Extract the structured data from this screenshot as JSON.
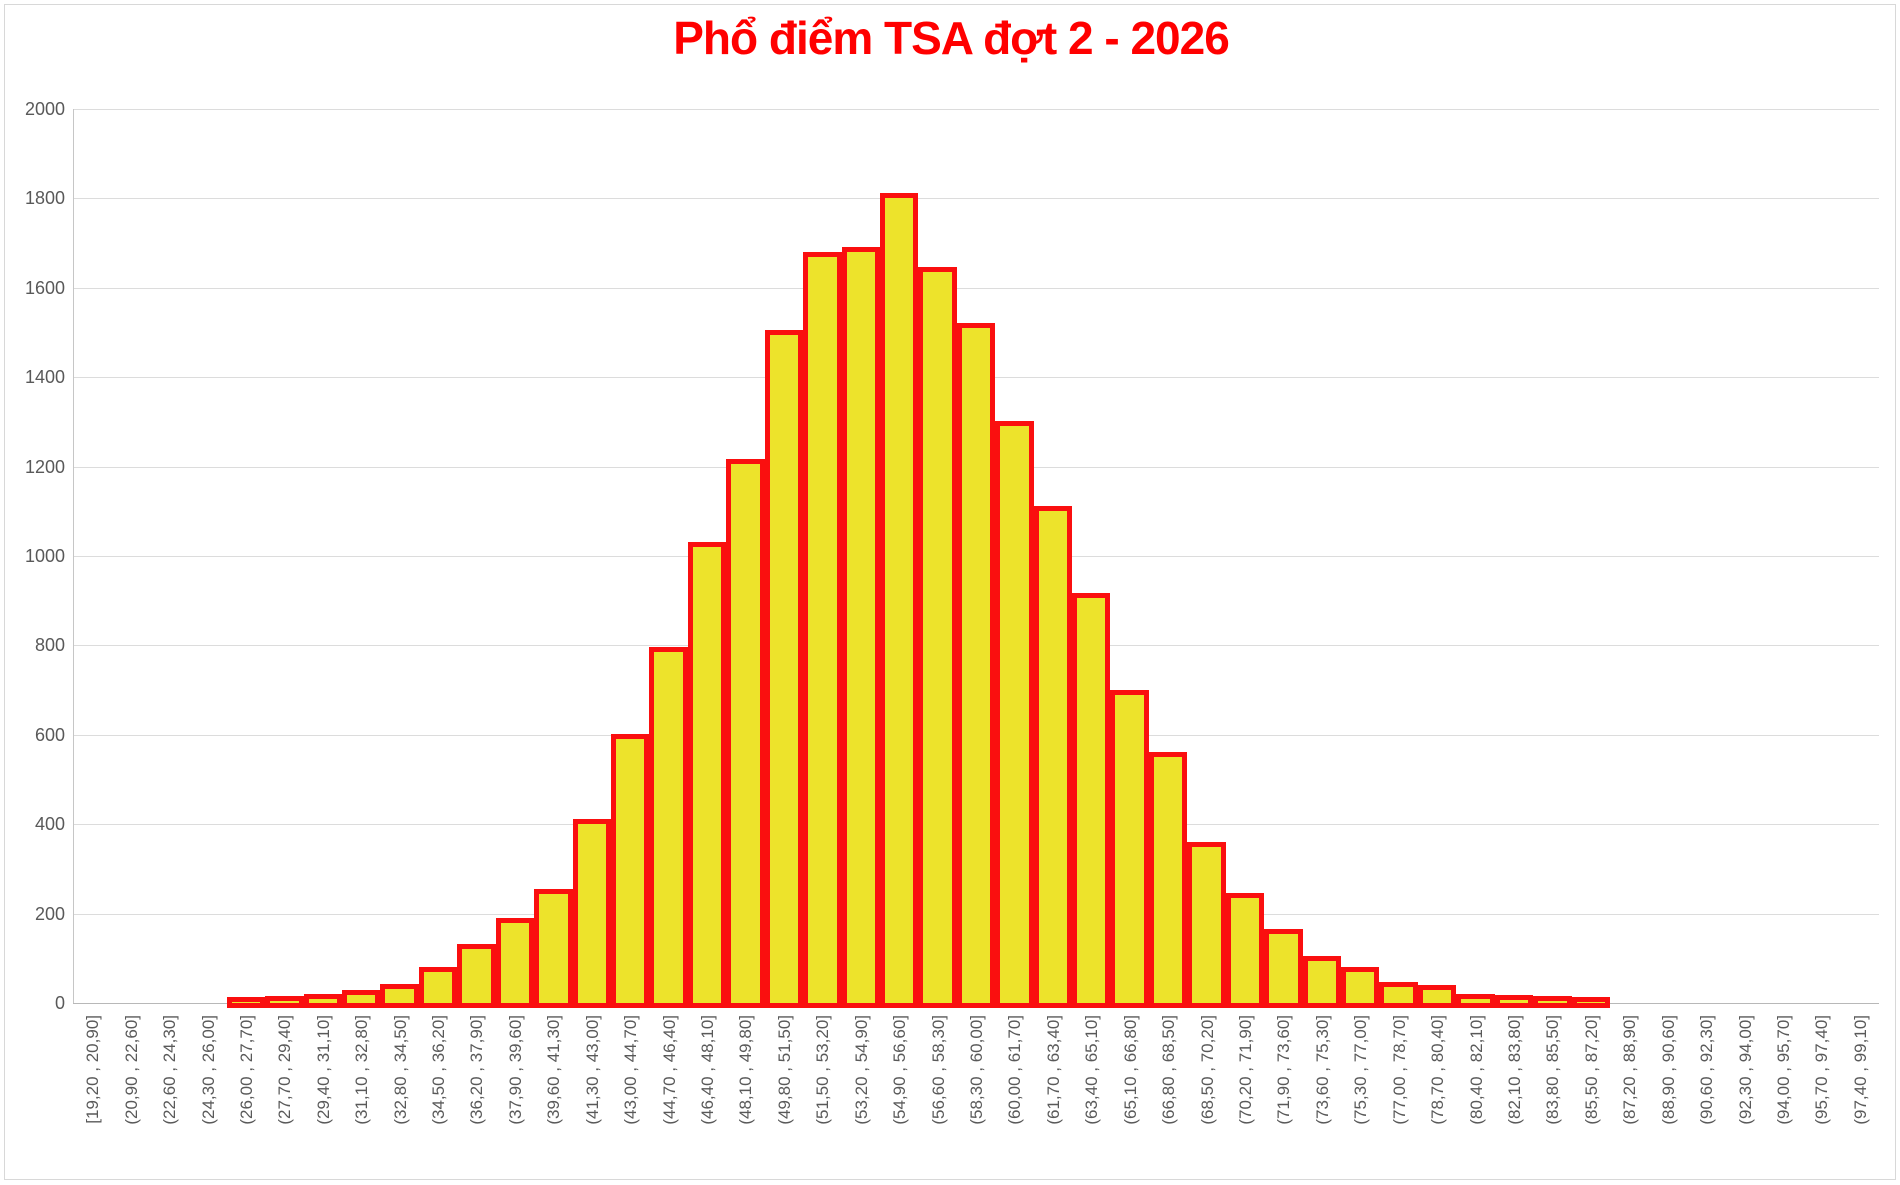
{
  "title": {
    "text": "Phổ điểm TSA đợt 2 - 2026",
    "color": "#FF0000"
  },
  "chart_data": {
    "type": "bar",
    "title": "Phổ điểm TSA đợt 2 - 2026",
    "categories": [
      "[19,20 , 20,90]",
      "(20,90 , 22,60]",
      "(22,60 , 24,30]",
      "(24,30 , 26,00]",
      "(26,00 , 27,70]",
      "(27,70 , 29,40]",
      "(29,40 , 31,10]",
      "(31,10 , 32,80]",
      "(32,80 , 34,50]",
      "(34,50 , 36,20]",
      "(36,20 , 37,90]",
      "(37,90 , 39,60]",
      "(39,60 , 41,30]",
      "(41,30 , 43,00]",
      "(43,00 , 44,70]",
      "(44,70 , 46,40]",
      "(46,40 , 48,10]",
      "(48,10 , 49,80]",
      "(49,80 , 51,50]",
      "(51,50 , 53,20]",
      "(53,20 , 54,90]",
      "(54,90 , 56,60]",
      "(56,60 , 58,30]",
      "(58,30 , 60,00]",
      "(60,00 , 61,70]",
      "(61,70 , 63,40]",
      "(63,40 , 65,10]",
      "(65,10 , 66,80]",
      "(66,80 , 68,50]",
      "(68,50 , 70,20]",
      "(70,20 , 71,90]",
      "(71,90 , 73,60]",
      "(73,60 , 75,30]",
      "(75,30 , 77,00]",
      "(77,00 , 78,70]",
      "(78,70 , 80,40]",
      "(80,40 , 82,10]",
      "(82,10 , 83,80]",
      "(83,80 , 85,50]",
      "(85,50 , 87,20]",
      "(87,20 , 88,90]",
      "(88,90 , 90,60]",
      "(90,60 , 92,30]",
      "(92,30 , 94,00]",
      "(94,00 , 95,70]",
      "(95,70 , 97,40]",
      "(97,40 , 99,10]"
    ],
    "values": [
      0,
      0,
      0,
      0,
      2,
      4,
      10,
      18,
      32,
      70,
      120,
      180,
      245,
      400,
      590,
      785,
      1020,
      1205,
      1495,
      1670,
      1680,
      1800,
      1635,
      1510,
      1290,
      1100,
      905,
      690,
      550,
      350,
      235,
      155,
      95,
      70,
      35,
      30,
      8,
      7,
      5,
      3,
      0,
      0,
      0,
      0,
      0,
      0,
      0
    ],
    "xlabel": "",
    "ylabel": "",
    "ylim": [
      0,
      2000
    ],
    "ytick_interval": 200,
    "ytick_labels": [
      "2000",
      "1800",
      "1600",
      "1400",
      "1200",
      "1000",
      "800",
      "600",
      "400",
      "200",
      "0"
    ],
    "grid": true,
    "legend": false,
    "bar_fill": "#EDE32B",
    "bar_border": "#FA0F0F",
    "tick_color": "#595959",
    "gridline_color": "#DCDCDC"
  }
}
